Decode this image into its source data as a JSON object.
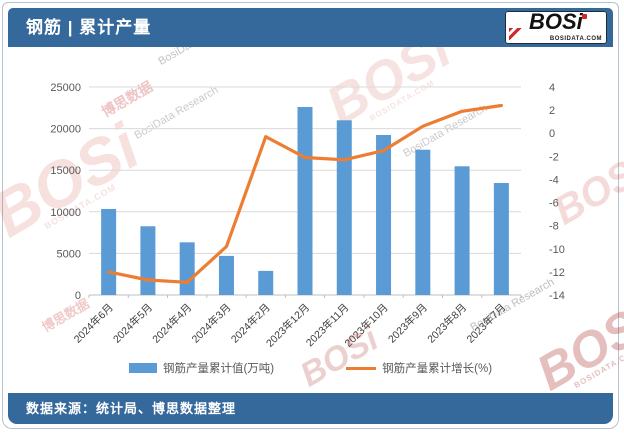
{
  "header": {
    "title": "钢筋 | 累计产量",
    "logo": {
      "text": "BOSi",
      "site": "BOSIDATA.COM"
    }
  },
  "footer": {
    "source": "数据来源：统计局、博思数据整理"
  },
  "watermark": {
    "logo_text": "BOSi",
    "site_text": "BOSIDATA.COM",
    "cn_text": "博思数据",
    "en_text": "BosiData Research"
  },
  "chart_data": {
    "type": "bar",
    "subtype": "bar+line combo, dual axis",
    "categories": [
      "2024年6月",
      "2024年5月",
      "2024年4月",
      "2024年3月",
      "2024年2月",
      "2023年12月",
      "2023年11月",
      "2023年10月",
      "2023年9月",
      "2023年8月",
      "2023年7月"
    ],
    "series": [
      {
        "name": "钢筋产量累计值(万吨)",
        "type": "bar",
        "axis": "left",
        "color": "#5B9BD5",
        "values": [
          10340,
          8260,
          6330,
          4700,
          2900,
          22600,
          21000,
          19230,
          17460,
          15470,
          13460
        ]
      },
      {
        "name": "钢筋产量累计增长(%)",
        "type": "line",
        "axis": "right",
        "color": "#ED7D31",
        "values": [
          -12.0,
          -12.7,
          -12.9,
          -9.8,
          -0.3,
          -2.1,
          -2.3,
          -1.5,
          0.6,
          1.9,
          2.4
        ]
      }
    ],
    "left_axis": {
      "min": 0,
      "max": 25000,
      "step": 5000
    },
    "right_axis": {
      "min": -14,
      "max": 4,
      "step": 2
    },
    "grid": true,
    "legend_position": "bottom",
    "colors": {
      "grid": "#D9D9D9",
      "axis": "#BFBFBF",
      "tick_label": "#595959",
      "category_label": "#404040",
      "theme_blue": "#35689B"
    }
  }
}
